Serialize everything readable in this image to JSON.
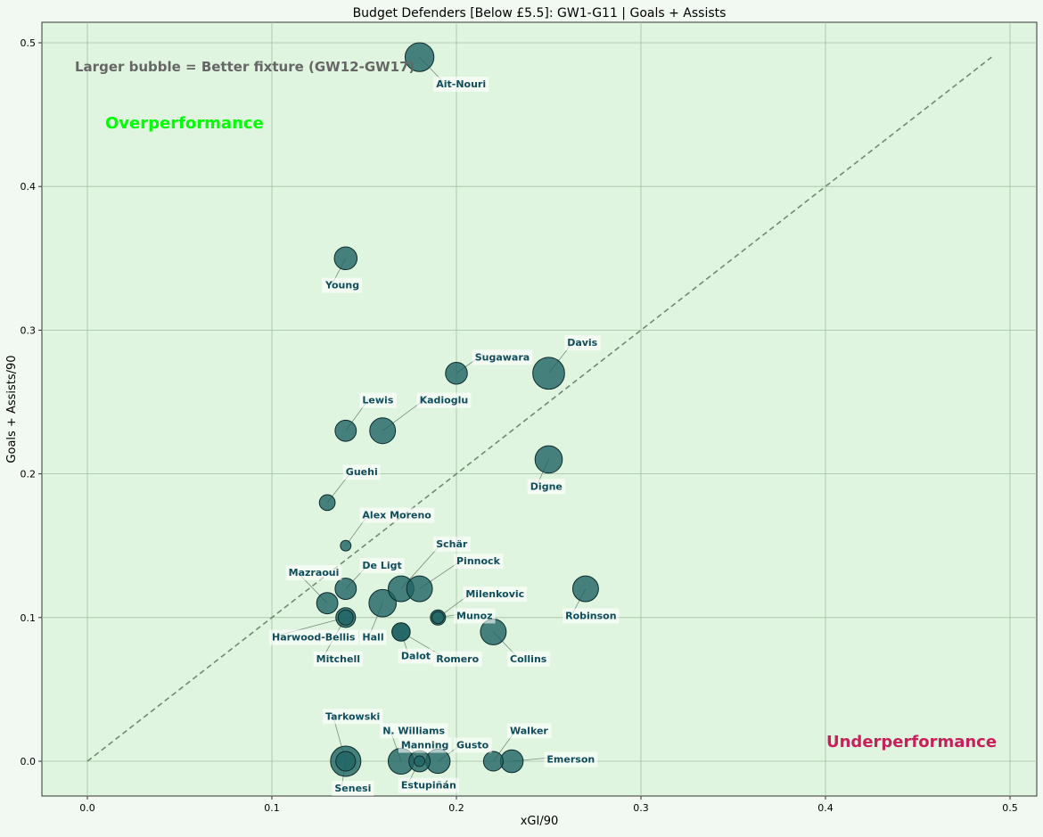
{
  "chart_data": {
    "type": "scatter",
    "title": "Budget Defenders [Below £5.5]: GW1-G11 | Goals + Assists",
    "xlabel": "xGI/90",
    "ylabel": "Goals + Assists/90",
    "xlim": [
      -0.025,
      0.515
    ],
    "ylim": [
      -0.025,
      0.515
    ],
    "x_ticks": [
      "0.0",
      "0.1",
      "0.2",
      "0.3",
      "0.4",
      "0.5"
    ],
    "y_ticks": [
      "0.0",
      "0.1",
      "0.2",
      "0.3",
      "0.4",
      "0.5"
    ],
    "grid": true,
    "note": "Larger bubble = Better fixture (GW12-GW17)",
    "region_labels": {
      "over": "Overperformance",
      "under": "Underperformance"
    },
    "reference_line": {
      "from": [
        0,
        0
      ],
      "to": [
        0.49,
        0.49
      ],
      "style": "dashed"
    },
    "colors": {
      "background": "#e0f5e0",
      "bubble": "#1e6363",
      "label_text": "#0f4d5c",
      "over": "#00ff00",
      "under": "#c8205a",
      "note": "#666666"
    },
    "points": [
      {
        "name": "Ait-Nouri",
        "x": 0.18,
        "y": 0.49,
        "size": 0.95,
        "lx": 0.189,
        "ly": 0.469
      },
      {
        "name": "Young",
        "x": 0.14,
        "y": 0.35,
        "size": 0.75,
        "lx": 0.129,
        "ly": 0.329
      },
      {
        "name": "Davis",
        "x": 0.25,
        "y": 0.27,
        "size": 1.05,
        "lx": 0.26,
        "ly": 0.289
      },
      {
        "name": "Sugawara",
        "x": 0.2,
        "y": 0.27,
        "size": 0.72,
        "lx": 0.21,
        "ly": 0.279
      },
      {
        "name": "Lewis",
        "x": 0.14,
        "y": 0.23,
        "size": 0.7,
        "lx": 0.149,
        "ly": 0.249
      },
      {
        "name": "Kadioglu",
        "x": 0.16,
        "y": 0.23,
        "size": 0.85,
        "lx": 0.18,
        "ly": 0.249
      },
      {
        "name": "Digne",
        "x": 0.25,
        "y": 0.21,
        "size": 0.9,
        "lx": 0.24,
        "ly": 0.189
      },
      {
        "name": "Guehi",
        "x": 0.13,
        "y": 0.18,
        "size": 0.52,
        "lx": 0.14,
        "ly": 0.199
      },
      {
        "name": "Alex Moreno",
        "x": 0.14,
        "y": 0.15,
        "size": 0.35,
        "lx": 0.149,
        "ly": 0.169
      },
      {
        "name": "Schär",
        "x": 0.17,
        "y": 0.12,
        "size": 0.85,
        "lx": 0.189,
        "ly": 0.149
      },
      {
        "name": "Pinnock",
        "x": 0.18,
        "y": 0.12,
        "size": 0.85,
        "lx": 0.2,
        "ly": 0.137
      },
      {
        "name": "De Ligt",
        "x": 0.14,
        "y": 0.12,
        "size": 0.7,
        "lx": 0.149,
        "ly": 0.134
      },
      {
        "name": "Mazraoui",
        "x": 0.13,
        "y": 0.11,
        "size": 0.7,
        "lx": 0.109,
        "ly": 0.129
      },
      {
        "name": "Milenkovic",
        "x": 0.19,
        "y": 0.1,
        "size": 0.5,
        "lx": 0.205,
        "ly": 0.114
      },
      {
        "name": "Robinson",
        "x": 0.27,
        "y": 0.12,
        "size": 0.85,
        "lx": 0.259,
        "ly": 0.099
      },
      {
        "name": "Munoz",
        "x": 0.19,
        "y": 0.1,
        "size": 0.4,
        "lx": 0.2,
        "ly": 0.099
      },
      {
        "name": "Harwood-Bellis",
        "x": 0.14,
        "y": 0.1,
        "size": 0.65,
        "lx": 0.1,
        "ly": 0.084
      },
      {
        "name": "Hall",
        "x": 0.16,
        "y": 0.11,
        "size": 0.9,
        "lx": 0.149,
        "ly": 0.084
      },
      {
        "name": "Mitchell",
        "x": 0.14,
        "y": 0.1,
        "size": 0.5,
        "lx": 0.124,
        "ly": 0.069
      },
      {
        "name": "Dalot",
        "x": 0.17,
        "y": 0.09,
        "size": 0.6,
        "lx": 0.17,
        "ly": 0.071
      },
      {
        "name": "Romero",
        "x": 0.17,
        "y": 0.09,
        "size": 0.6,
        "lx": 0.189,
        "ly": 0.069
      },
      {
        "name": "Collins",
        "x": 0.22,
        "y": 0.09,
        "size": 0.85,
        "lx": 0.229,
        "ly": 0.069
      },
      {
        "name": "Tarkowski",
        "x": 0.14,
        "y": 0.0,
        "size": 1.0,
        "lx": 0.129,
        "ly": 0.029
      },
      {
        "name": "N. Williams",
        "x": 0.17,
        "y": 0.0,
        "size": 0.85,
        "lx": 0.16,
        "ly": 0.019
      },
      {
        "name": "Manning",
        "x": 0.18,
        "y": 0.0,
        "size": 0.7,
        "lx": 0.17,
        "ly": 0.009
      },
      {
        "name": "Gusto",
        "x": 0.19,
        "y": 0.0,
        "size": 0.8,
        "lx": 0.2,
        "ly": 0.009
      },
      {
        "name": "Walker",
        "x": 0.22,
        "y": 0.0,
        "size": 0.65,
        "lx": 0.229,
        "ly": 0.019
      },
      {
        "name": "Emerson",
        "x": 0.23,
        "y": 0.0,
        "size": 0.75,
        "lx": 0.249,
        "ly": -0.001
      },
      {
        "name": "Senesi",
        "x": 0.14,
        "y": 0.0,
        "size": 0.65,
        "lx": 0.134,
        "ly": -0.021
      },
      {
        "name": "Estupiñán",
        "x": 0.18,
        "y": 0.0,
        "size": 0.35,
        "lx": 0.17,
        "ly": -0.019
      }
    ]
  }
}
